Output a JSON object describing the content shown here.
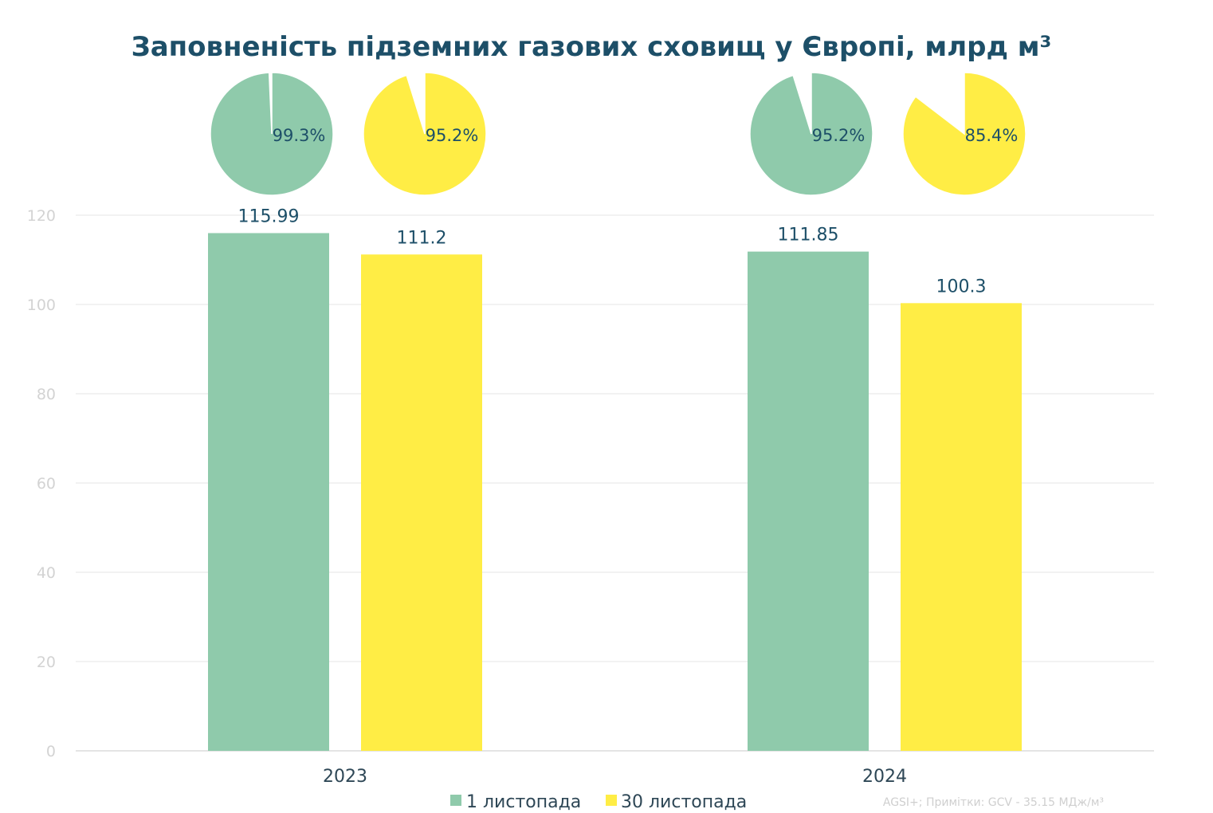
{
  "chart_data": {
    "type": "bar",
    "title": "Заповненість підземних газових сховищ у Європі, млрд м³",
    "categories": [
      "2023",
      "2024"
    ],
    "series": [
      {
        "name": "1 листопада",
        "values": [
          115.99,
          111.85
        ],
        "value_labels": [
          "115.99",
          "111.85"
        ],
        "color": "#8fcaab"
      },
      {
        "name": "30 листопада",
        "values": [
          111.2,
          100.3
        ],
        "value_labels": [
          "111.2",
          "100.3"
        ],
        "color": "#ffed45"
      }
    ],
    "ylim": [
      0,
      120
    ],
    "yticks": [
      "0",
      "20",
      "40",
      "60",
      "80",
      "100",
      "120"
    ],
    "grid": true,
    "legend_position": "bottom",
    "fill_percent": {
      "type": "pie",
      "values": [
        [
          99.3,
          95.2
        ],
        [
          95.2,
          85.4
        ]
      ],
      "labels": [
        [
          "99.3%",
          "95.2%"
        ],
        [
          "95.2%",
          "85.4%"
        ]
      ],
      "remainder_color": "#ffffff"
    },
    "source_note": "AGSI+; Примітки: GCV - 35.15 МДж/м³"
  }
}
